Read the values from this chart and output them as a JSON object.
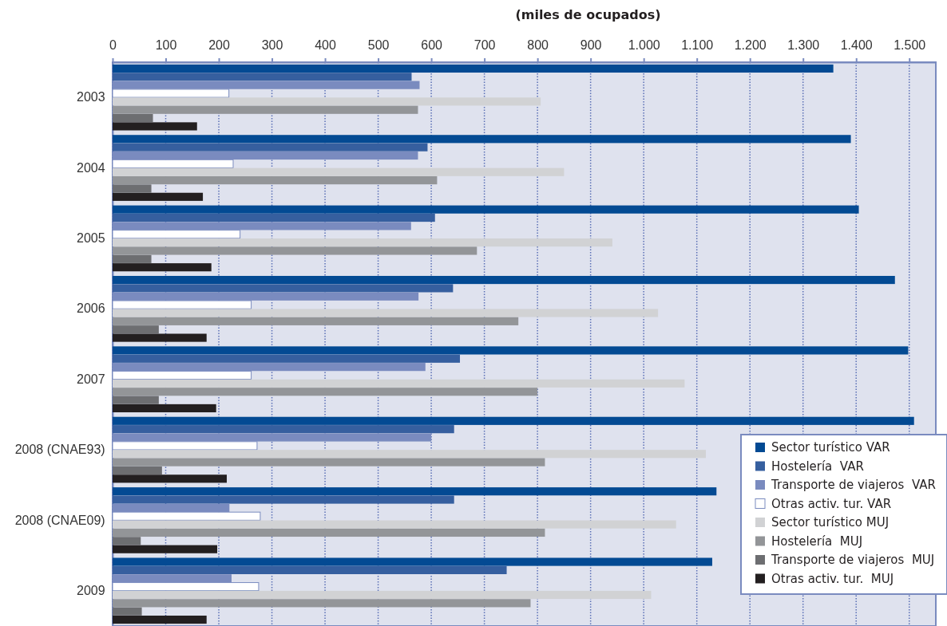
{
  "chart_data": {
    "type": "bar",
    "orientation": "horizontal",
    "xlabel": "(miles de ocupados)",
    "categories": [
      "2003",
      "2004",
      "2005",
      "2006",
      "2007",
      "2008 (CNAE93)",
      "2008 (CNAE09)",
      "2009"
    ],
    "series": [
      {
        "name": "Sector turístico VAR",
        "color": "#034a93",
        "values": [
          1357,
          1390,
          1405,
          1473,
          1498,
          1509,
          1137,
          1129
        ]
      },
      {
        "name": "Hostelería  VAR",
        "color": "#365f9f",
        "values": [
          563,
          593,
          607,
          641,
          654,
          643,
          643,
          742
        ]
      },
      {
        "name": "Transporte de viajeros  VAR",
        "color": "#7a8bbf",
        "values": [
          578,
          575,
          562,
          576,
          589,
          600,
          220,
          224
        ]
      },
      {
        "name": "Otras activ. tur. VAR",
        "color": "#ffffff",
        "values": [
          219,
          227,
          240,
          261,
          261,
          272,
          278,
          275
        ]
      },
      {
        "name": "Sector turístico MUJ",
        "color": "#d1d2d4",
        "values": [
          806,
          850,
          941,
          1027,
          1077,
          1117,
          1061,
          1014
        ]
      },
      {
        "name": "Hostelería  MUJ",
        "color": "#939598",
        "values": [
          575,
          611,
          686,
          764,
          800,
          814,
          814,
          787
        ]
      },
      {
        "name": "Transporte de viajeros  MUJ",
        "color": "#6d6e71",
        "values": [
          76,
          73,
          73,
          87,
          87,
          93,
          53,
          55
        ]
      },
      {
        "name": "Otras activ. tur.  MUJ",
        "color": "#231f20",
        "values": [
          159,
          170,
          186,
          177,
          195,
          215,
          197,
          177
        ]
      }
    ],
    "xlim": [
      0,
      1550
    ],
    "xticks": [
      0,
      100,
      200,
      300,
      400,
      500,
      600,
      700,
      800,
      900,
      {
        "value": 1000,
        "label": "1.000"
      },
      {
        "value": 1100,
        "label": "1.100"
      },
      {
        "value": 1200,
        "label": "1.200"
      },
      {
        "value": 1300,
        "label": "1.300"
      },
      {
        "value": 1400,
        "label": "1.400"
      },
      {
        "value": 1500,
        "label": "1.500"
      }
    ],
    "grid": "x",
    "legend": "bottom right"
  }
}
